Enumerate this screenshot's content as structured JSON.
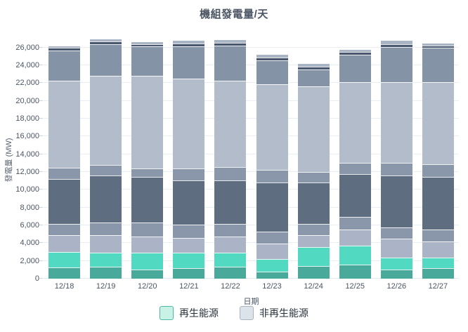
{
  "title": "機組發電量/天",
  "chart_data": {
    "type": "bar",
    "stacked": true,
    "title": "機組發電量/天",
    "xlabel": "日期",
    "ylabel": "發電量 (MW)",
    "categories": [
      "12/18",
      "12/19",
      "12/20",
      "12/21",
      "12/22",
      "12/23",
      "12/24",
      "12/25",
      "12/26",
      "12/27"
    ],
    "ylim": [
      0,
      27400
    ],
    "ytick_step": 2000,
    "ytick_max": 26000,
    "grid": true,
    "legend_position": "bottom",
    "legend": [
      {
        "name": "legend-item-renewable",
        "label": "再生能源",
        "fill": "#c9f2e6",
        "border": "#4db6a4"
      },
      {
        "name": "legend-item-nonrenewable",
        "label": "非再生能源",
        "fill": "#dde3ea",
        "border": "#a9b4bf"
      }
    ],
    "segment_order_note": "segments listed bottom-to-top per bar, values in MW",
    "segment_groups": [
      "renewable",
      "renewable",
      "non-renewable",
      "non-renewable",
      "non-renewable",
      "non-renewable",
      "non-renewable",
      "non-renewable",
      "non-renewable",
      "non-renewable"
    ],
    "segment_colors": [
      "#49a99b",
      "#52d9c2",
      "#aab4c6",
      "#8a96a9",
      "#5f6d80",
      "#8a96a9",
      "#b2bcca",
      "#8593a7",
      "#49586e",
      "#a9b4c5"
    ],
    "bars": [
      {
        "category": "12/18",
        "segments": [
          1240,
          1790,
          1850,
          1320,
          5000,
          1320,
          9750,
          3370,
          360,
          140
        ],
        "total": 26140
      },
      {
        "category": "12/19",
        "segments": [
          1320,
          1580,
          1980,
          1440,
          5280,
          1180,
          10020,
          3550,
          350,
          250
        ],
        "total": 26950
      },
      {
        "category": "12/20",
        "segments": [
          1060,
          1840,
          1840,
          1580,
          5140,
          930,
          10430,
          3320,
          210,
          260
        ],
        "total": 26610
      },
      {
        "category": "12/21",
        "segments": [
          1190,
          1710,
          1720,
          1440,
          5010,
          1320,
          10140,
          3610,
          340,
          270
        ],
        "total": 26750
      },
      {
        "category": "12/22",
        "segments": [
          1320,
          1580,
          1840,
          1460,
          4870,
          1450,
          9750,
          3950,
          340,
          310
        ],
        "total": 26870
      },
      {
        "category": "12/23",
        "segments": [
          790,
          1450,
          1710,
          1320,
          5530,
          1450,
          9620,
          2690,
          340,
          270
        ],
        "total": 25170
      },
      {
        "category": "12/24",
        "segments": [
          1450,
          2110,
          1320,
          1320,
          4600,
          1190,
          9670,
          1850,
          340,
          340
        ],
        "total": 24190
      },
      {
        "category": "12/25",
        "segments": [
          1580,
          2110,
          1840,
          1460,
          4740,
          1310,
          9090,
          3030,
          340,
          270
        ],
        "total": 25770
      },
      {
        "category": "12/26",
        "segments": [
          1060,
          1310,
          2110,
          1320,
          5800,
          1440,
          9090,
          3950,
          320,
          350
        ],
        "total": 26750
      },
      {
        "category": "12/27",
        "segments": [
          1190,
          1180,
          1850,
          1320,
          5930,
          1440,
          9230,
          3810,
          270,
          260
        ],
        "total": 26480
      }
    ],
    "colors": {
      "background": "#ffffff",
      "gridline": "#e9eef3",
      "axis_tick": "#ccd5dd",
      "axis_text": "#4b5563",
      "title_text": "#4b5563"
    }
  }
}
